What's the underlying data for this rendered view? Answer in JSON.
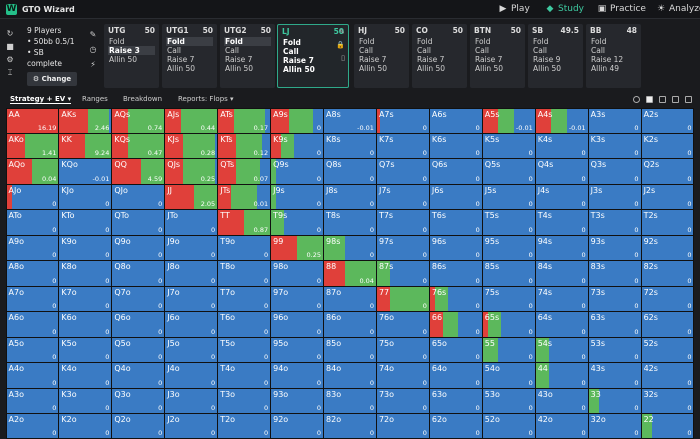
{
  "app": {
    "logo": "W",
    "title": "GTO Wizard"
  },
  "nav": [
    {
      "label": "Play",
      "icon": "▶",
      "active": false
    },
    {
      "label": "Study",
      "icon": "◆",
      "active": true
    },
    {
      "label": "Practice",
      "icon": "▣",
      "active": false
    },
    {
      "label": "Analyze",
      "icon": "☀",
      "active": false
    }
  ],
  "side_icons": [
    "↻",
    "■",
    "⚙",
    "⌶"
  ],
  "info": {
    "players": "9 Players",
    "stakes": "• 50bb 0.5/1",
    "status": "• SB complete",
    "change_label": "Change"
  },
  "panel_icons": [
    "✎",
    "◷",
    "⚡"
  ],
  "seats": [
    {
      "pos": "UTG",
      "stack": "50",
      "actions": [
        {
          "t": "Fold",
          "s": ""
        },
        {
          "t": "Raise 3",
          "s": "on"
        },
        {
          "t": "Allin 50",
          "s": ""
        }
      ]
    },
    {
      "pos": "UTG1",
      "stack": "50",
      "actions": [
        {
          "t": "Fold",
          "s": "on"
        },
        {
          "t": "Call",
          "s": ""
        },
        {
          "t": "Raise 7",
          "s": ""
        },
        {
          "t": "Allin 50",
          "s": ""
        }
      ]
    },
    {
      "pos": "UTG2",
      "stack": "50",
      "actions": [
        {
          "t": "Fold",
          "s": "on"
        },
        {
          "t": "Call",
          "s": ""
        },
        {
          "t": "Raise 7",
          "s": ""
        },
        {
          "t": "Allin 50",
          "s": ""
        }
      ]
    },
    {
      "pos": "LJ",
      "stack": "50",
      "actions": [
        {
          "t": "Fold",
          "s": "bold"
        },
        {
          "t": "Call",
          "s": "bold"
        },
        {
          "t": "Raise 7",
          "s": "bold"
        },
        {
          "t": "Allin 50",
          "s": "bold"
        }
      ]
    },
    {
      "pos": "HJ",
      "stack": "50",
      "actions": [
        {
          "t": "Fold",
          "s": ""
        },
        {
          "t": "Call",
          "s": ""
        },
        {
          "t": "Raise 7",
          "s": ""
        },
        {
          "t": "Allin 50",
          "s": ""
        }
      ]
    },
    {
      "pos": "CO",
      "stack": "50",
      "actions": [
        {
          "t": "Fold",
          "s": ""
        },
        {
          "t": "Call",
          "s": ""
        },
        {
          "t": "Raise 7",
          "s": ""
        },
        {
          "t": "Allin 50",
          "s": ""
        }
      ]
    },
    {
      "pos": "BTN",
      "stack": "50",
      "actions": [
        {
          "t": "Fold",
          "s": ""
        },
        {
          "t": "Call",
          "s": ""
        },
        {
          "t": "Raise 7",
          "s": ""
        },
        {
          "t": "Allin 50",
          "s": ""
        }
      ]
    },
    {
      "pos": "SB",
      "stack": "49.5",
      "actions": [
        {
          "t": "Fold",
          "s": ""
        },
        {
          "t": "Call",
          "s": ""
        },
        {
          "t": "Raise 9",
          "s": ""
        },
        {
          "t": "Allin 50",
          "s": ""
        }
      ]
    },
    {
      "pos": "BB",
      "stack": "48",
      "actions": [
        {
          "t": "Fold",
          "s": ""
        },
        {
          "t": "Call",
          "s": ""
        },
        {
          "t": "Raise 12",
          "s": ""
        },
        {
          "t": "Allin 49",
          "s": ""
        }
      ]
    }
  ],
  "tabs": [
    {
      "label": "Strategy + EV ▾",
      "active": true
    },
    {
      "label": "Ranges",
      "active": false
    },
    {
      "label": "Breakdown",
      "active": false
    },
    {
      "label": "Reports: Flops ▾",
      "active": false
    }
  ],
  "colors": {
    "raise": "#e0403a",
    "call": "#5cb85c",
    "fold": "#3a7bc4"
  },
  "grid": {
    "rows": [
      [
        "AA",
        "AKs",
        "AQs",
        "AJs",
        "ATs",
        "A9s",
        "A8s",
        "A7s",
        "A6s",
        "A5s",
        "A4s",
        "A3s",
        "A2s"
      ],
      [
        "AKo",
        "KK",
        "KQs",
        "KJs",
        "KTs",
        "K9s",
        "K8s",
        "K7s",
        "K6s",
        "K5s",
        "K4s",
        "K3s",
        "K2s"
      ],
      [
        "AQo",
        "KQo",
        "QQ",
        "QJs",
        "QTs",
        "Q9s",
        "Q8s",
        "Q7s",
        "Q6s",
        "Q5s",
        "Q4s",
        "Q3s",
        "Q2s"
      ],
      [
        "AJo",
        "KJo",
        "QJo",
        "JJ",
        "JTs",
        "J9s",
        "J8s",
        "J7s",
        "J6s",
        "J5s",
        "J4s",
        "J3s",
        "J2s"
      ],
      [
        "ATo",
        "KTo",
        "QTo",
        "JTo",
        "TT",
        "T9s",
        "T8s",
        "T7s",
        "T6s",
        "T5s",
        "T4s",
        "T3s",
        "T2s"
      ],
      [
        "A9o",
        "K9o",
        "Q9o",
        "J9o",
        "T9o",
        "99",
        "98s",
        "97s",
        "96s",
        "95s",
        "94s",
        "93s",
        "92s"
      ],
      [
        "A8o",
        "K8o",
        "Q8o",
        "J8o",
        "T8o",
        "98o",
        "88",
        "87s",
        "86s",
        "85s",
        "84s",
        "83s",
        "82s"
      ],
      [
        "A7o",
        "K7o",
        "Q7o",
        "J7o",
        "T7o",
        "97o",
        "87o",
        "77",
        "76s",
        "75s",
        "74s",
        "73s",
        "72s"
      ],
      [
        "A6o",
        "K6o",
        "Q6o",
        "J6o",
        "T6o",
        "96o",
        "86o",
        "76o",
        "66",
        "65s",
        "64s",
        "63s",
        "62s"
      ],
      [
        "A5o",
        "K5o",
        "Q5o",
        "J5o",
        "T5o",
        "95o",
        "85o",
        "75o",
        "65o",
        "55",
        "54s",
        "53s",
        "52s"
      ],
      [
        "A4o",
        "K4o",
        "Q4o",
        "J4o",
        "T4o",
        "94o",
        "84o",
        "74o",
        "64o",
        "54o",
        "44",
        "43s",
        "42s"
      ],
      [
        "A3o",
        "K3o",
        "Q3o",
        "J3o",
        "T3o",
        "93o",
        "83o",
        "73o",
        "63o",
        "53o",
        "43o",
        "33",
        "32s"
      ],
      [
        "A2o",
        "K2o",
        "Q2o",
        "J2o",
        "T2o",
        "92o",
        "82o",
        "72o",
        "62o",
        "52o",
        "42o",
        "32o",
        "22"
      ]
    ],
    "ev": [
      [
        "16.19",
        "2.46",
        "0.74",
        "0.44",
        "0.17",
        "0",
        "-0.01",
        "0",
        "0",
        "-0.01",
        "-0.01",
        "0",
        "0"
      ],
      [
        "1.41",
        "9.24",
        "0.47",
        "0.28",
        "0.12",
        "0",
        "0",
        "0",
        "0",
        "0",
        "0",
        "0",
        "0"
      ],
      [
        "0.04",
        "-0.01",
        "4.59",
        "0.25",
        "0.07",
        "0",
        "0",
        "0",
        "0",
        "0",
        "0",
        "0",
        "0"
      ],
      [
        "0",
        "0",
        "0",
        "2.05",
        "0.01",
        "0",
        "0",
        "0",
        "0",
        "0",
        "0",
        "0",
        "0"
      ],
      [
        "0",
        "0",
        "0",
        "0",
        "0.87",
        "0",
        "0",
        "0",
        "0",
        "0",
        "0",
        "0",
        "0"
      ],
      [
        "0",
        "0",
        "0",
        "0",
        "0",
        "0.25",
        "0",
        "0",
        "0",
        "0",
        "0",
        "0",
        "0"
      ],
      [
        "0",
        "0",
        "0",
        "0",
        "0",
        "0",
        "0.04",
        "0",
        "0",
        "0",
        "0",
        "0",
        "0"
      ],
      [
        "0",
        "0",
        "0",
        "0",
        "0",
        "0",
        "0",
        "0",
        "0",
        "0",
        "0",
        "0",
        "0"
      ],
      [
        "0",
        "0",
        "0",
        "0",
        "0",
        "0",
        "0",
        "0",
        "0",
        "0",
        "0",
        "0",
        "0"
      ],
      [
        "0",
        "0",
        "0",
        "0",
        "0",
        "0",
        "0",
        "0",
        "0",
        "0",
        "0",
        "0",
        "0"
      ],
      [
        "0",
        "0",
        "0",
        "0",
        "0",
        "0",
        "0",
        "0",
        "0",
        "0",
        "0",
        "0",
        "0"
      ],
      [
        "0",
        "0",
        "0",
        "0",
        "0",
        "0",
        "0",
        "0",
        "0",
        "0",
        "0",
        "0",
        "0"
      ],
      [
        "0",
        "0",
        "0",
        "0",
        "0",
        "0",
        "0",
        "0",
        "0",
        "0",
        "0",
        "0",
        "0"
      ]
    ],
    "freq": [
      [
        [
          1,
          0
        ],
        [
          0.55,
          0.4
        ],
        [
          0.3,
          0.7
        ],
        [
          0.3,
          0.7
        ],
        [
          0.3,
          0.6
        ],
        [
          0.35,
          0.45
        ],
        [
          0,
          0
        ],
        [
          0.05,
          0
        ],
        [
          0,
          0
        ],
        [
          0.3,
          0.3
        ],
        [
          0.3,
          0.3
        ],
        [
          0,
          0
        ],
        [
          0,
          0
        ]
      ],
      [
        [
          0.35,
          0.65
        ],
        [
          0.5,
          0.5
        ],
        [
          0.3,
          0.7
        ],
        [
          0.35,
          0.6
        ],
        [
          0.35,
          0.5
        ],
        [
          0.2,
          0.25
        ],
        [
          0,
          0
        ],
        [
          0,
          0
        ],
        [
          0,
          0
        ],
        [
          0,
          0
        ],
        [
          0,
          0
        ],
        [
          0,
          0
        ],
        [
          0,
          0
        ]
      ],
      [
        [
          0.5,
          0.5
        ],
        [
          0,
          0
        ],
        [
          0.55,
          0.45
        ],
        [
          0.35,
          0.6
        ],
        [
          0.35,
          0.45
        ],
        [
          0,
          0.1
        ],
        [
          0,
          0
        ],
        [
          0,
          0
        ],
        [
          0,
          0
        ],
        [
          0,
          0
        ],
        [
          0,
          0
        ],
        [
          0,
          0
        ],
        [
          0,
          0
        ]
      ],
      [
        [
          0.1,
          0
        ],
        [
          0,
          0
        ],
        [
          0,
          0
        ],
        [
          0.55,
          0.45
        ],
        [
          0.25,
          0.5
        ],
        [
          0,
          0.1
        ],
        [
          0,
          0
        ],
        [
          0,
          0
        ],
        [
          0,
          0
        ],
        [
          0,
          0
        ],
        [
          0,
          0
        ],
        [
          0,
          0
        ],
        [
          0,
          0
        ]
      ],
      [
        [
          0,
          0
        ],
        [
          0,
          0
        ],
        [
          0,
          0
        ],
        [
          0,
          0
        ],
        [
          0.5,
          0.5
        ],
        [
          0,
          0.25
        ],
        [
          0,
          0
        ],
        [
          0,
          0
        ],
        [
          0,
          0
        ],
        [
          0,
          0
        ],
        [
          0,
          0
        ],
        [
          0,
          0
        ],
        [
          0,
          0
        ]
      ],
      [
        [
          0,
          0
        ],
        [
          0,
          0
        ],
        [
          0,
          0
        ],
        [
          0,
          0
        ],
        [
          0,
          0
        ],
        [
          0.5,
          0.5
        ],
        [
          0,
          0.4
        ],
        [
          0,
          0
        ],
        [
          0,
          0
        ],
        [
          0,
          0
        ],
        [
          0,
          0
        ],
        [
          0,
          0
        ],
        [
          0,
          0
        ]
      ],
      [
        [
          0,
          0
        ],
        [
          0,
          0
        ],
        [
          0,
          0
        ],
        [
          0,
          0
        ],
        [
          0,
          0
        ],
        [
          0,
          0
        ],
        [
          0.4,
          0.6
        ],
        [
          0,
          0.25
        ],
        [
          0,
          0
        ],
        [
          0,
          0
        ],
        [
          0,
          0
        ],
        [
          0,
          0
        ],
        [
          0,
          0
        ]
      ],
      [
        [
          0,
          0
        ],
        [
          0,
          0
        ],
        [
          0,
          0
        ],
        [
          0,
          0
        ],
        [
          0,
          0
        ],
        [
          0,
          0
        ],
        [
          0,
          0
        ],
        [
          0.25,
          0.75
        ],
        [
          0.1,
          0.25
        ],
        [
          0,
          0
        ],
        [
          0,
          0
        ],
        [
          0,
          0
        ],
        [
          0,
          0
        ]
      ],
      [
        [
          0,
          0
        ],
        [
          0,
          0
        ],
        [
          0,
          0
        ],
        [
          0,
          0
        ],
        [
          0,
          0
        ],
        [
          0,
          0
        ],
        [
          0,
          0
        ],
        [
          0,
          0
        ],
        [
          0.25,
          0.3
        ],
        [
          0.1,
          0.25
        ],
        [
          0,
          0
        ],
        [
          0,
          0
        ],
        [
          0,
          0
        ]
      ],
      [
        [
          0,
          0
        ],
        [
          0,
          0
        ],
        [
          0,
          0
        ],
        [
          0,
          0
        ],
        [
          0,
          0
        ],
        [
          0,
          0
        ],
        [
          0,
          0
        ],
        [
          0,
          0
        ],
        [
          0,
          0
        ],
        [
          0,
          0.3
        ],
        [
          0,
          0.25
        ],
        [
          0,
          0
        ],
        [
          0,
          0
        ]
      ],
      [
        [
          0,
          0
        ],
        [
          0,
          0
        ],
        [
          0,
          0
        ],
        [
          0,
          0
        ],
        [
          0,
          0
        ],
        [
          0,
          0
        ],
        [
          0,
          0
        ],
        [
          0,
          0
        ],
        [
          0,
          0
        ],
        [
          0,
          0
        ],
        [
          0,
          0.25
        ],
        [
          0,
          0
        ],
        [
          0,
          0
        ]
      ],
      [
        [
          0,
          0
        ],
        [
          0,
          0
        ],
        [
          0,
          0
        ],
        [
          0,
          0
        ],
        [
          0,
          0
        ],
        [
          0,
          0
        ],
        [
          0,
          0
        ],
        [
          0,
          0
        ],
        [
          0,
          0
        ],
        [
          0,
          0
        ],
        [
          0,
          0
        ],
        [
          0,
          0.2
        ],
        [
          0,
          0
        ]
      ],
      [
        [
          0,
          0
        ],
        [
          0,
          0
        ],
        [
          0,
          0
        ],
        [
          0,
          0
        ],
        [
          0,
          0
        ],
        [
          0,
          0
        ],
        [
          0,
          0
        ],
        [
          0,
          0
        ],
        [
          0,
          0
        ],
        [
          0,
          0
        ],
        [
          0,
          0
        ],
        [
          0,
          0
        ],
        [
          0,
          0.2
        ]
      ]
    ]
  }
}
